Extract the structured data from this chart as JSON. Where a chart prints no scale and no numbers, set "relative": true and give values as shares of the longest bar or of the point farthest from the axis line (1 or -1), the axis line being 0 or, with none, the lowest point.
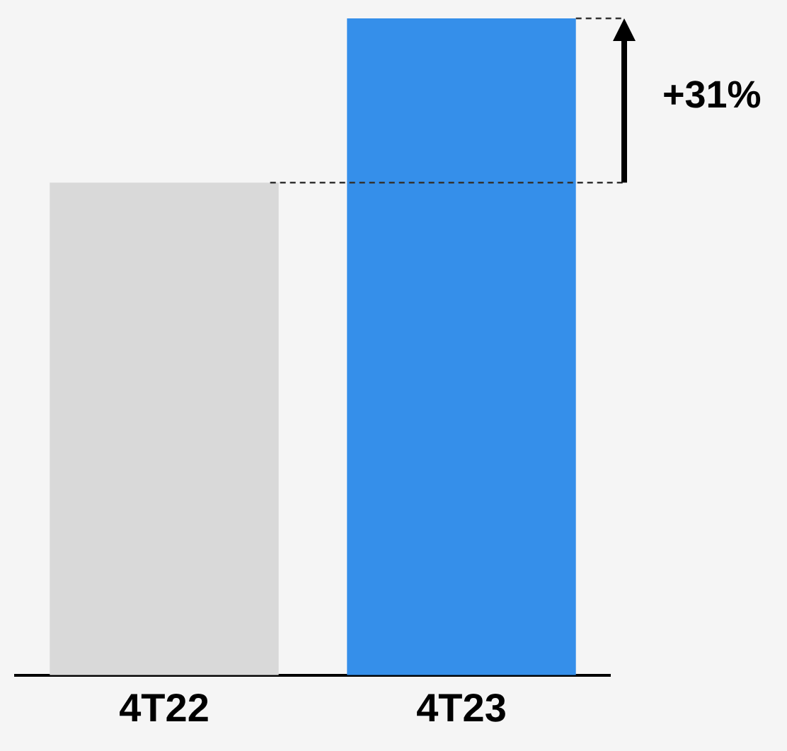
{
  "chart_data": {
    "type": "bar",
    "relative": true,
    "categories": [
      "4T22",
      "4T23"
    ],
    "values": [
      0.75,
      1
    ],
    "colors": [
      "#d9d9d9",
      "#358fea"
    ],
    "annotations": [
      "+31%"
    ],
    "ref_lines": [
      {
        "axis": "y",
        "value": 0.75,
        "color": "#333333",
        "line_style": "dashed"
      }
    ],
    "grid": false,
    "legend": false
  }
}
